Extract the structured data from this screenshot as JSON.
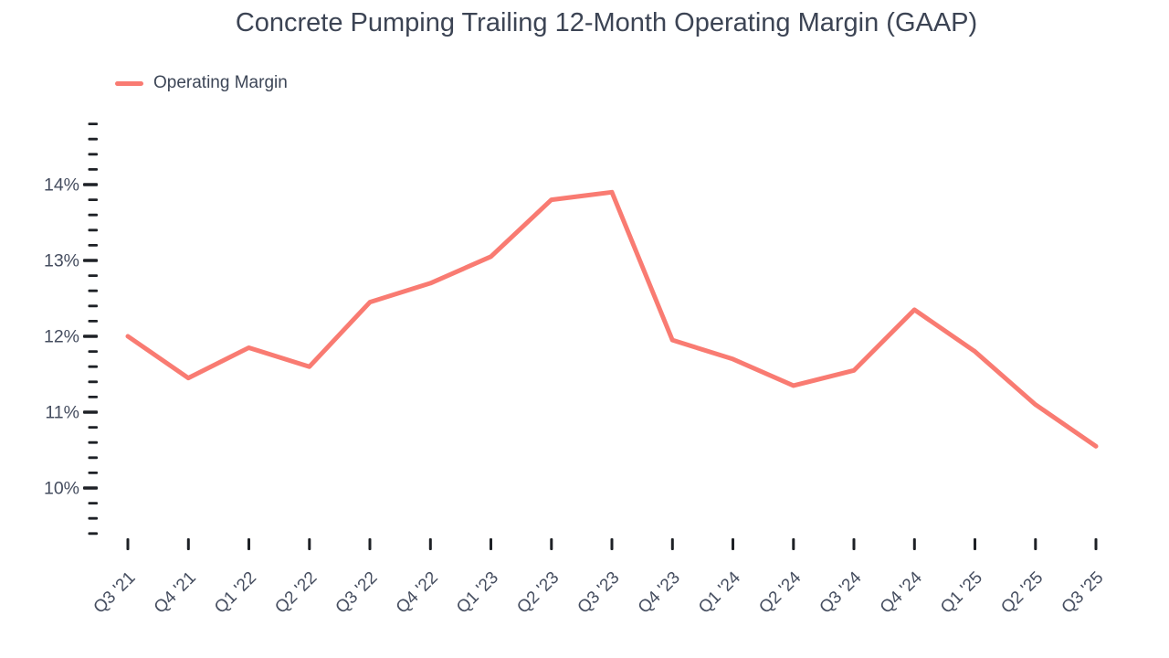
{
  "title": "Concrete Pumping Trailing 12-Month Operating Margin (GAAP)",
  "legend": {
    "label": "Operating Margin",
    "color": "#f97b72"
  },
  "colors": {
    "line": "#f97b72",
    "tick": "#1e2126",
    "axis_label": "#454d5f",
    "title_text": "#3c4454"
  },
  "chart_data": {
    "type": "line",
    "title": "Concrete Pumping Trailing 12-Month Operating Margin (GAAP)",
    "xlabel": "",
    "ylabel": "",
    "grid": false,
    "legend_position": "top-left",
    "categories": [
      "Q3 '21",
      "Q4 '21",
      "Q1 '22",
      "Q2 '22",
      "Q3 '22",
      "Q4 '22",
      "Q1 '23",
      "Q2 '23",
      "Q3 '23",
      "Q4 '23",
      "Q1 '24",
      "Q2 '24",
      "Q3 '24",
      "Q4 '24",
      "Q1 '25",
      "Q2 '25",
      "Q3 '25"
    ],
    "series": [
      {
        "name": "Operating Margin",
        "values": [
          12.0,
          11.45,
          11.85,
          11.6,
          12.45,
          12.7,
          13.05,
          13.8,
          13.9,
          11.95,
          11.7,
          11.35,
          11.55,
          12.35,
          11.8,
          11.1,
          10.55
        ]
      }
    ],
    "y_axis": {
      "min": 9.4,
      "max": 14.8,
      "major_step": 1,
      "minor_step": 0.2,
      "unit": "%",
      "major_labels": [
        "10%",
        "11%",
        "12%",
        "13%",
        "14%"
      ]
    }
  }
}
